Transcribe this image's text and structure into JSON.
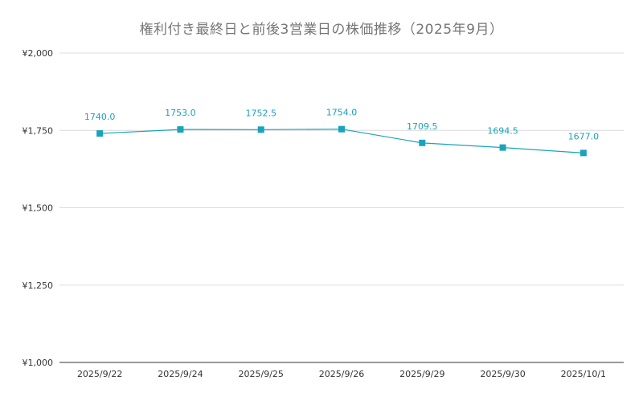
{
  "chart_data": {
    "type": "line",
    "title": "権利付き最終日と前後3営業日の株価推移（2025年9月）",
    "xlabel": "",
    "ylabel": "",
    "categories": [
      "2025/9/22",
      "2025/9/24",
      "2025/9/25",
      "2025/9/26",
      "2025/9/29",
      "2025/9/30",
      "2025/10/1"
    ],
    "series": [
      {
        "values": [
          1740.0,
          1753.0,
          1752.5,
          1754.0,
          1709.5,
          1694.5,
          1677.0
        ],
        "data_labels": [
          "1740.0",
          "1753.0",
          "1752.5",
          "1754.0",
          "1709.5",
          "1694.5",
          "1677.0"
        ],
        "color": "#1aa3bb",
        "marker": "square"
      }
    ],
    "ylim": [
      1000,
      2000
    ],
    "y_ticks": [
      1000,
      1250,
      1500,
      1750,
      2000
    ],
    "y_tick_labels": [
      "¥1,000",
      "¥1,250",
      "¥1,500",
      "¥1,750",
      "¥2,000"
    ],
    "grid": true,
    "legend": "none"
  }
}
